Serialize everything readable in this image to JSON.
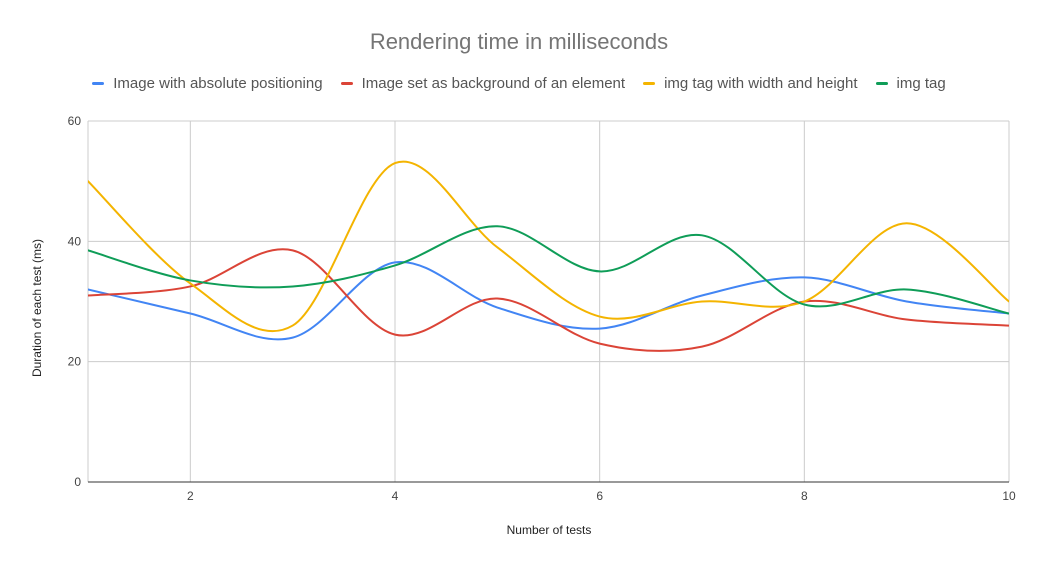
{
  "chart_data": {
    "type": "line",
    "title": "Rendering time in milliseconds",
    "xlabel": "Number of tests",
    "ylabel": "Duration of each test (ms)",
    "x": [
      1,
      2,
      3,
      4,
      5,
      6,
      7,
      8,
      9,
      10
    ],
    "xlim": [
      1,
      10
    ],
    "ylim": [
      0,
      60
    ],
    "xticks": [
      2,
      4,
      6,
      8,
      10
    ],
    "yticks": [
      0,
      20,
      40,
      60
    ],
    "grid": true,
    "legend_position": "top",
    "curve": "smooth",
    "series": [
      {
        "name": "Image with absolute positioning",
        "color": "#4285F4",
        "values": [
          32,
          28,
          24,
          36.5,
          29,
          25.5,
          31,
          34,
          30,
          28
        ]
      },
      {
        "name": "Image set as background of an element",
        "color": "#DB4437",
        "values": [
          31,
          32.5,
          38.5,
          24.5,
          30.5,
          23,
          22.5,
          30,
          27,
          26
        ]
      },
      {
        "name": "img tag with width and height",
        "color": "#F4B400",
        "values": [
          50,
          33,
          26,
          53,
          39,
          27.5,
          30,
          30,
          43,
          30
        ]
      },
      {
        "name": "img tag",
        "color": "#0F9D58",
        "values": [
          38.5,
          33.5,
          32.5,
          36,
          42.5,
          35,
          41,
          29.5,
          32,
          28
        ]
      }
    ]
  }
}
